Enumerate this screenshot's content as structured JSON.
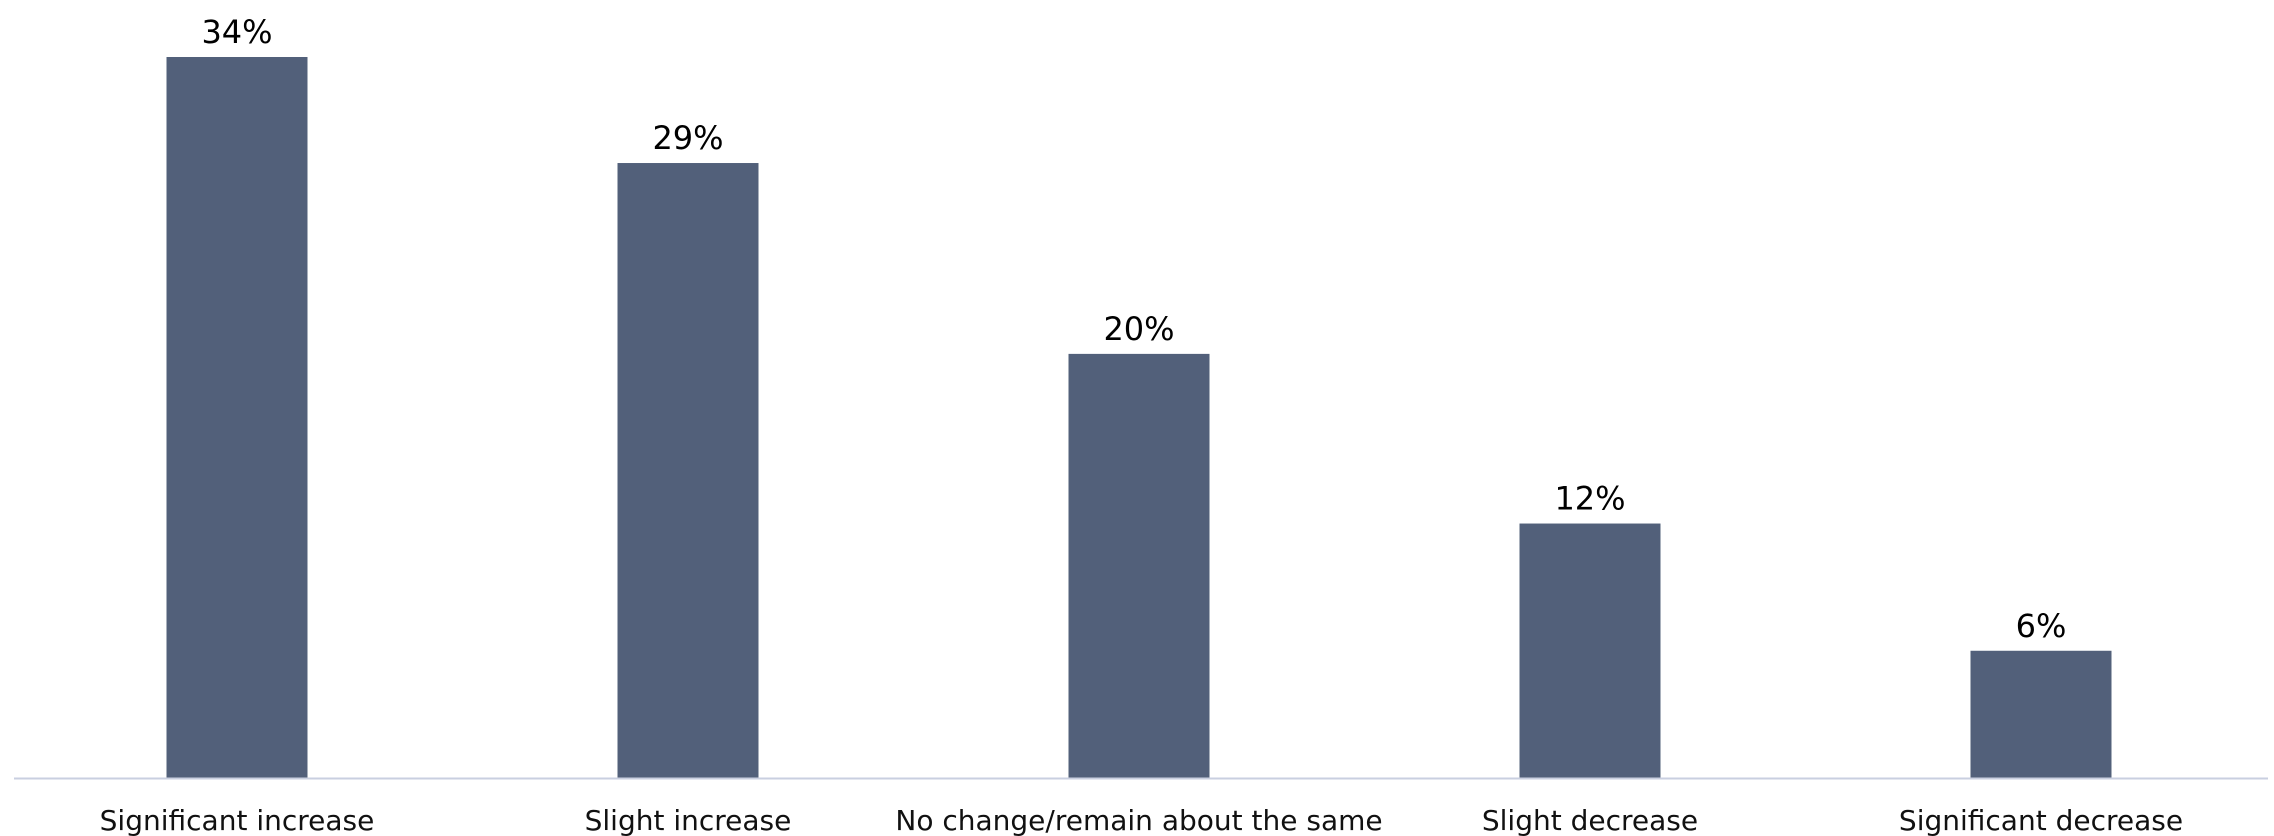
{
  "chart_data": {
    "type": "bar",
    "categories": [
      "Significant increase",
      "Slight increase",
      "No change/remain about the same",
      "Slight decrease",
      "Significant decrease"
    ],
    "values": [
      34,
      29,
      20,
      12,
      6
    ],
    "value_labels": [
      "34%",
      "29%",
      "20%",
      "12%",
      "6%"
    ],
    "unit": "%",
    "bar_color": "#52607A",
    "axis_color": "#C9CFE0",
    "grid": false,
    "legend": "none",
    "ylim": [
      0,
      34
    ]
  }
}
